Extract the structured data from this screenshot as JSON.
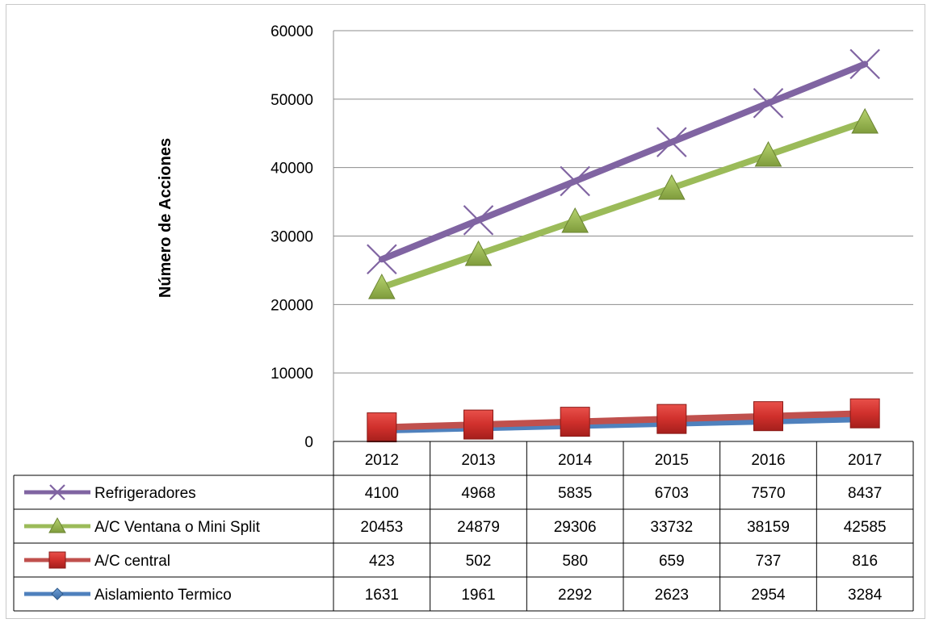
{
  "chart_data": {
    "type": "line",
    "title": "",
    "xlabel": "",
    "ylabel": "Número de Acciones",
    "ylim": [
      0,
      60000
    ],
    "yticks": [
      0,
      10000,
      20000,
      30000,
      40000,
      50000,
      60000
    ],
    "grid": true,
    "legend": "data-table",
    "categories": [
      "2012",
      "2013",
      "2014",
      "2015",
      "2016",
      "2017"
    ],
    "series": [
      {
        "name": "Refrigeradores",
        "marker": "x",
        "color": "#8064a2",
        "values": [
          4100,
          4968,
          5835,
          6703,
          7570,
          8437
        ],
        "plotted": [
          26607,
          32313,
          38013,
          43717,
          49420,
          55122
        ]
      },
      {
        "name": "A/C Ventana o Mini Split",
        "marker": "triangle",
        "color": "#9bbb59",
        "values": [
          20453,
          24879,
          29306,
          33732,
          38159,
          42585
        ],
        "plotted": [
          22507,
          27345,
          32178,
          37014,
          41850,
          46685
        ]
      },
      {
        "name": "A/C central",
        "marker": "square",
        "color": "#c0504d",
        "values": [
          423,
          502,
          580,
          659,
          737,
          816
        ],
        "plotted": [
          2054,
          2463,
          2872,
          3282,
          3691,
          4100
        ]
      },
      {
        "name": "Aislamiento Termico",
        "marker": "diamond",
        "color": "#4f81bd",
        "values": [
          1631,
          1961,
          2292,
          2623,
          2954,
          3284
        ],
        "plotted": [
          1631,
          1961,
          2292,
          2623,
          2954,
          3284
        ]
      }
    ]
  }
}
